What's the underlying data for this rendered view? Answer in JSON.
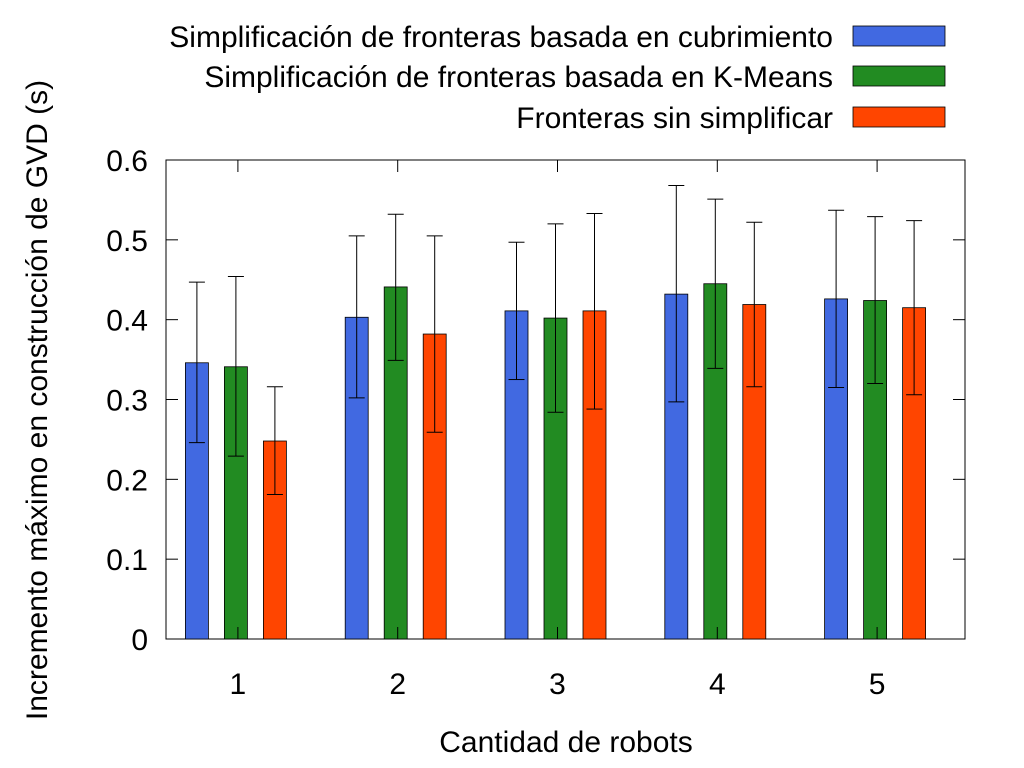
{
  "chart_data": {
    "type": "bar",
    "xlabel": "Cantidad de robots",
    "ylabel": "Incremento máximo en construcción de GVD (s)",
    "categories": [
      "1",
      "2",
      "3",
      "4",
      "5"
    ],
    "ylim": [
      0,
      0.6
    ],
    "yticks": [
      "0",
      "0.1",
      "0.2",
      "0.3",
      "0.4",
      "0.5",
      "0.6"
    ],
    "grid": false,
    "legend_position": "top-right",
    "series": [
      {
        "name": "Simplificación de fronteras basada en cubrimiento",
        "color": "#4169e1",
        "values": [
          0.346,
          0.403,
          0.411,
          0.432,
          0.426
        ],
        "err_low": [
          0.246,
          0.302,
          0.325,
          0.297,
          0.315
        ],
        "err_high": [
          0.447,
          0.505,
          0.497,
          0.568,
          0.537
        ]
      },
      {
        "name": "Simplificación de fronteras basada en K-Means",
        "color": "#228b22",
        "values": [
          0.341,
          0.441,
          0.402,
          0.445,
          0.424
        ],
        "err_low": [
          0.229,
          0.349,
          0.284,
          0.339,
          0.32
        ],
        "err_high": [
          0.454,
          0.532,
          0.52,
          0.551,
          0.529
        ]
      },
      {
        "name": "Fronteras sin simplificar",
        "color": "#ff4500",
        "values": [
          0.248,
          0.382,
          0.411,
          0.419,
          0.415
        ],
        "err_low": [
          0.181,
          0.259,
          0.288,
          0.316,
          0.306
        ],
        "err_high": [
          0.316,
          0.505,
          0.533,
          0.522,
          0.524
        ]
      }
    ]
  }
}
